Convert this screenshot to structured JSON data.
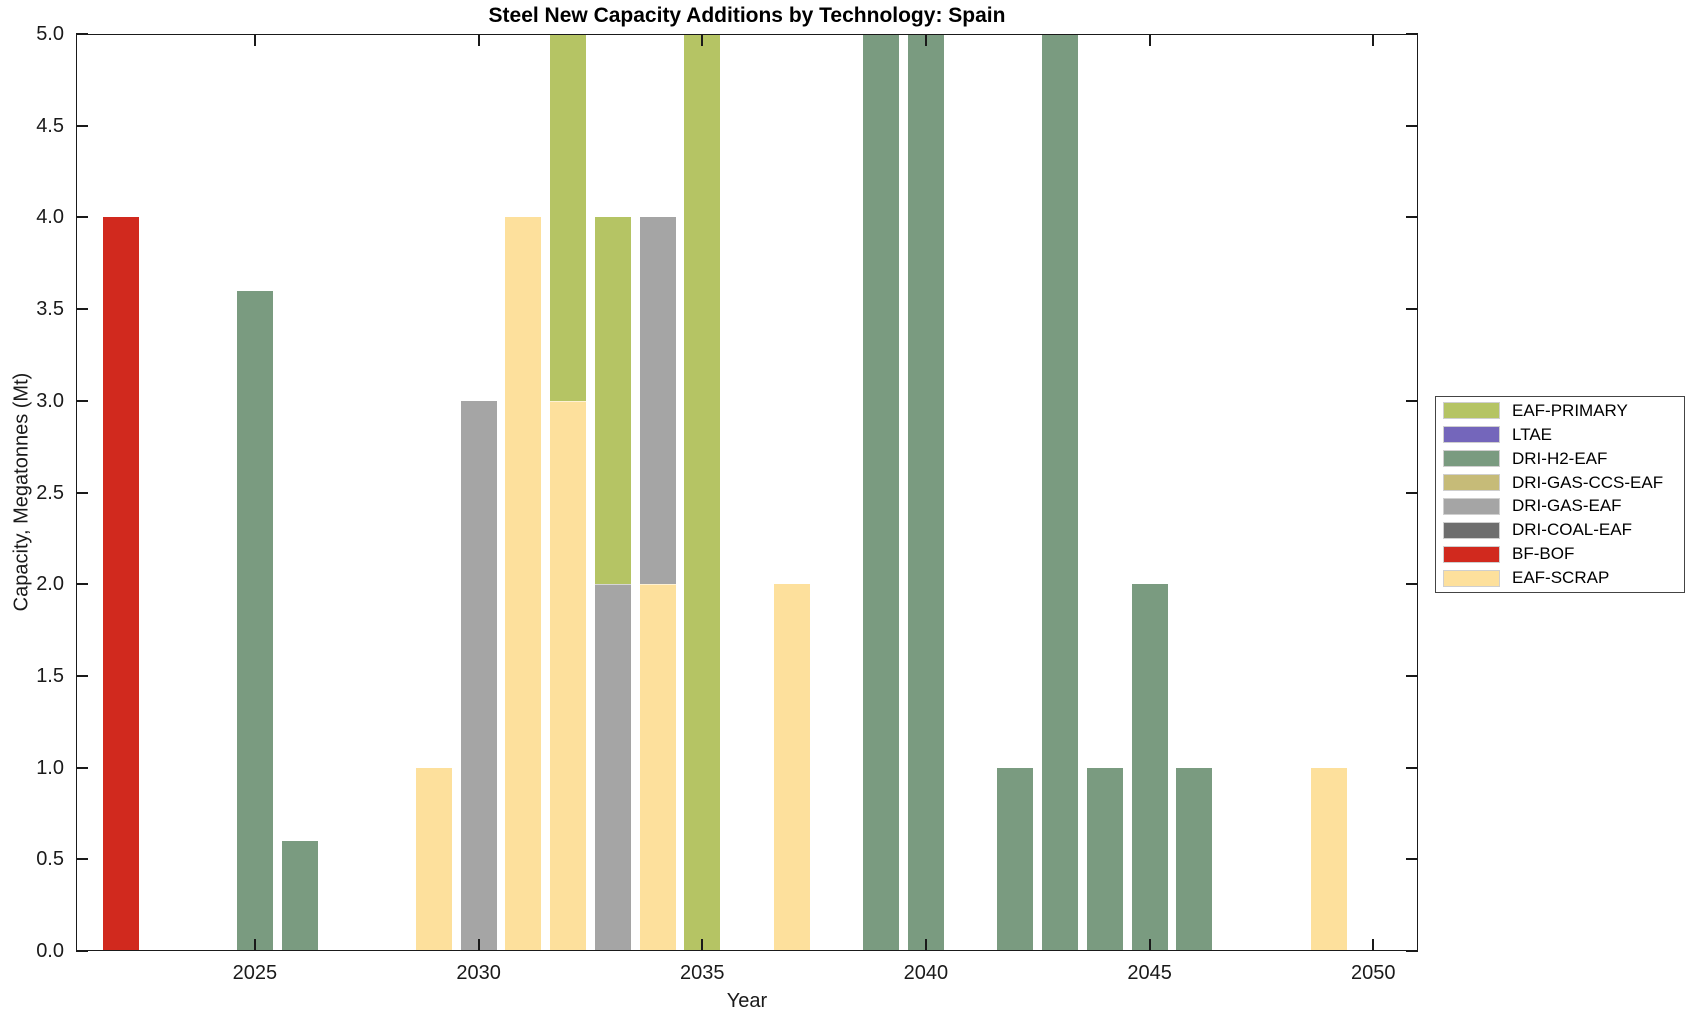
{
  "chart_data": {
    "type": "bar",
    "stacked": true,
    "title": "Steel New Capacity Additions by Technology: Spain",
    "xlabel": "Year",
    "ylabel": "Capacity, Megatonnes (Mt)",
    "xlim": [
      2021,
      2051
    ],
    "ylim": [
      0,
      5
    ],
    "xticks": [
      "2025",
      "2030",
      "2035",
      "2040",
      "2045",
      "2050"
    ],
    "ytick_labels": [
      "0.0",
      "0.5",
      "1.0",
      "1.5",
      "2.0",
      "2.5",
      "3.0",
      "3.5",
      "4.0",
      "4.5",
      "5.0"
    ],
    "bar_width_years": 0.8,
    "grid": false,
    "legend_position": "right-outside",
    "note": "Bars reaching 5.0 are clipped at the top of the y-axis",
    "colors": {
      "EAF-PRIMARY": "#b5c464",
      "LTAE": "#7466bb",
      "DRI-H2-EAF": "#7a9b80",
      "DRI-GAS-CCS-EAF": "#c6bb78",
      "DRI-GAS-EAF": "#a5a5a5",
      "DRI-COAL-EAF": "#6e6e6e",
      "BF-BOF": "#d1291e",
      "EAF-SCRAP": "#fde09c"
    },
    "legend": [
      "EAF-PRIMARY",
      "LTAE",
      "DRI-H2-EAF",
      "DRI-GAS-CCS-EAF",
      "DRI-GAS-EAF",
      "DRI-COAL-EAF",
      "BF-BOF",
      "EAF-SCRAP"
    ],
    "bars": [
      {
        "year": 2022,
        "segments": [
          {
            "tech": "BF-BOF",
            "value": 4.0
          }
        ]
      },
      {
        "year": 2025,
        "segments": [
          {
            "tech": "DRI-H2-EAF",
            "value": 3.6
          }
        ]
      },
      {
        "year": 2026,
        "segments": [
          {
            "tech": "DRI-H2-EAF",
            "value": 0.6
          }
        ]
      },
      {
        "year": 2029,
        "segments": [
          {
            "tech": "EAF-SCRAP",
            "value": 1.0
          }
        ]
      },
      {
        "year": 2030,
        "segments": [
          {
            "tech": "DRI-GAS-EAF",
            "value": 3.0
          }
        ]
      },
      {
        "year": 2031,
        "segments": [
          {
            "tech": "EAF-SCRAP",
            "value": 4.0
          }
        ]
      },
      {
        "year": 2032,
        "segments": [
          {
            "tech": "EAF-SCRAP",
            "value": 3.0
          },
          {
            "tech": "EAF-PRIMARY",
            "value": 2.0,
            "clipped": true
          }
        ]
      },
      {
        "year": 2033,
        "segments": [
          {
            "tech": "DRI-GAS-EAF",
            "value": 2.0
          },
          {
            "tech": "EAF-PRIMARY",
            "value": 2.0
          }
        ]
      },
      {
        "year": 2034,
        "segments": [
          {
            "tech": "EAF-SCRAP",
            "value": 2.0
          },
          {
            "tech": "DRI-GAS-EAF",
            "value": 2.0
          }
        ]
      },
      {
        "year": 2035,
        "segments": [
          {
            "tech": "EAF-PRIMARY",
            "value": 5.0,
            "clipped": true
          }
        ]
      },
      {
        "year": 2037,
        "segments": [
          {
            "tech": "EAF-SCRAP",
            "value": 2.0
          }
        ]
      },
      {
        "year": 2039,
        "segments": [
          {
            "tech": "DRI-H2-EAF",
            "value": 5.0,
            "clipped": true
          }
        ]
      },
      {
        "year": 2040,
        "segments": [
          {
            "tech": "DRI-H2-EAF",
            "value": 5.0,
            "clipped": true
          }
        ]
      },
      {
        "year": 2042,
        "segments": [
          {
            "tech": "DRI-H2-EAF",
            "value": 1.0
          }
        ]
      },
      {
        "year": 2043,
        "segments": [
          {
            "tech": "DRI-H2-EAF",
            "value": 5.0,
            "clipped": true
          }
        ]
      },
      {
        "year": 2044,
        "segments": [
          {
            "tech": "DRI-H2-EAF",
            "value": 1.0
          }
        ]
      },
      {
        "year": 2045,
        "segments": [
          {
            "tech": "DRI-H2-EAF",
            "value": 2.0
          }
        ]
      },
      {
        "year": 2046,
        "segments": [
          {
            "tech": "DRI-H2-EAF",
            "value": 1.0
          }
        ]
      },
      {
        "year": 2049,
        "segments": [
          {
            "tech": "EAF-SCRAP",
            "value": 1.0
          }
        ]
      }
    ]
  }
}
